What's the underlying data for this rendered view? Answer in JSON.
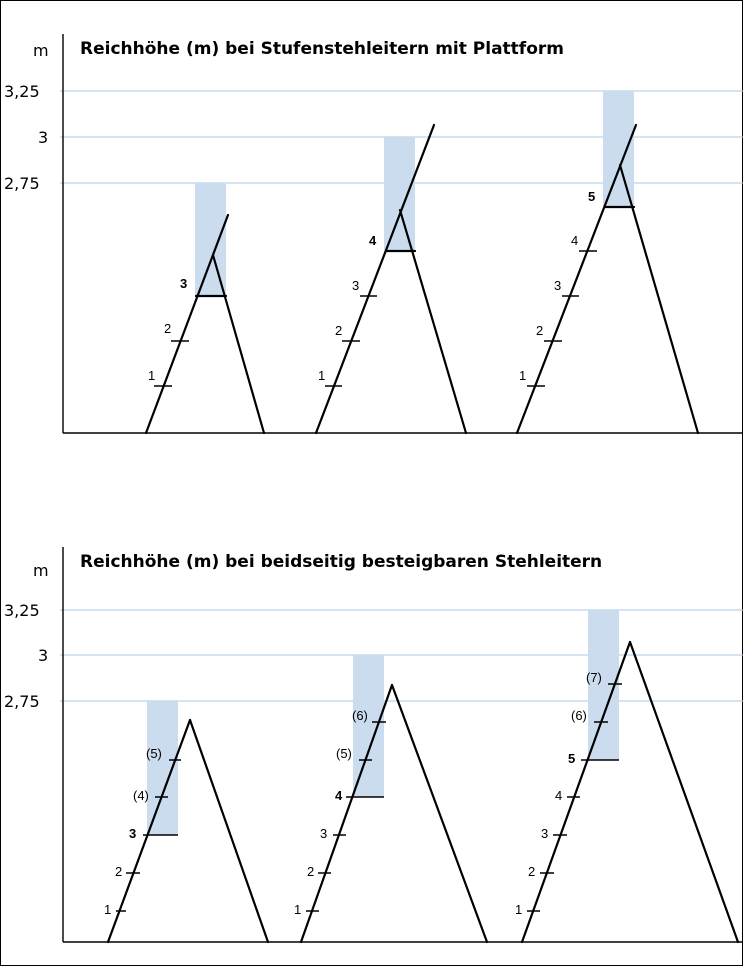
{
  "colors": {
    "reach_bar": "#ccdcef",
    "gridline": "#a8c8e4",
    "ink": "#000000"
  },
  "diagrams": [
    {
      "id": "platform",
      "title": "Reichhöhe (m) bei Stufenstehleitern mit Plattform",
      "unit": "m",
      "y_labels": [
        "3,25",
        "3",
        "2,75"
      ],
      "ladders": [
        {
          "step_labels": [
            "1",
            "2",
            "3"
          ],
          "bold_step": "3",
          "reach_top_m": 2.75
        },
        {
          "step_labels": [
            "1",
            "2",
            "3",
            "4"
          ],
          "bold_step": "4",
          "reach_top_m": 3.0
        },
        {
          "step_labels": [
            "1",
            "2",
            "3",
            "4",
            "5"
          ],
          "bold_step": "5",
          "reach_top_m": 3.25
        }
      ]
    },
    {
      "id": "double",
      "title": "Reichhöhe (m) bei beidseitig besteigbaren Stehleitern",
      "unit": "m",
      "y_labels": [
        "3,25",
        "3",
        "2,75"
      ],
      "ladders": [
        {
          "step_labels": [
            "1",
            "2",
            "3",
            "(4)",
            "(5)"
          ],
          "bold_step": "3",
          "reach_top_m": 2.75
        },
        {
          "step_labels": [
            "1",
            "2",
            "3",
            "4",
            "(5)",
            "(6)"
          ],
          "bold_step": "4",
          "reach_top_m": 3.0
        },
        {
          "step_labels": [
            "1",
            "2",
            "3",
            "4",
            "5",
            "(6)",
            "(7)"
          ],
          "bold_step": "5",
          "reach_top_m": 3.25
        }
      ]
    }
  ]
}
